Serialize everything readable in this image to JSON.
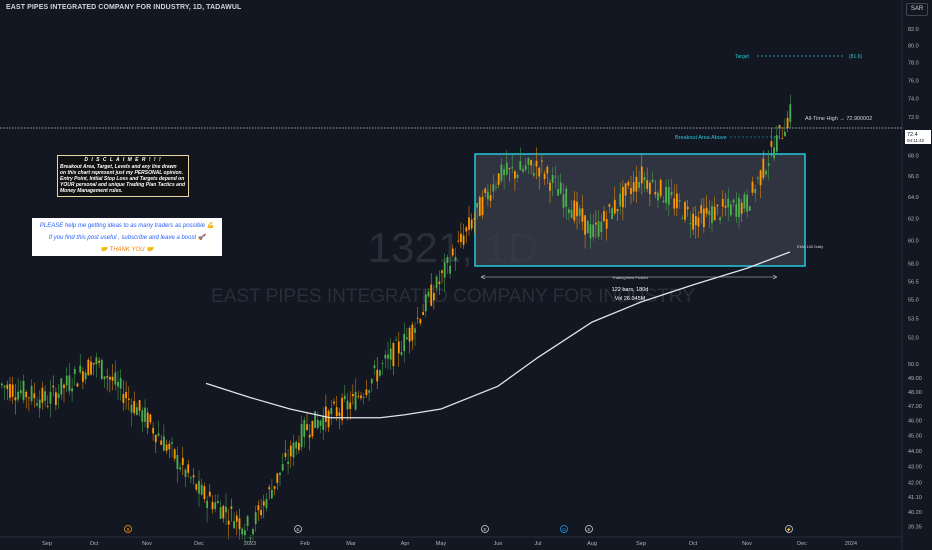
{
  "header": {
    "title": "EAST PIPES INTEGRATED COMPANY FOR INDUSTRY, 1D, TADAWUL",
    "currency": "SAR"
  },
  "watermark": {
    "symbol": "1321, 1D",
    "company": "EAST PIPES INTEGRATED COMPANY FOR INDUSTRY"
  },
  "disclaimer": {
    "heading": "D I S C L A I M E R  ! ! !",
    "body": "Breakout Area, Target, Levels and any line drawn\non this chart represent just my PERSONAL opinion.\nEntry Point, Initial Stop Loss and Targets depend on\nYOUR personal and unique Trading Plan Tactics and\nMoney Management rules."
  },
  "help_box": {
    "line1": "PLEASE help me getting ideas to as many traders as possible 💪",
    "line2": "If you find this post useful , subscribe and leave a boost 🚀",
    "line3": "🤝 THANK YOU 🤝"
  },
  "annotations": {
    "target_label": "Target",
    "target_value": "(81.6)",
    "ath_label": "All-Time High → 72.900002",
    "breakout_label": "Breakout Area Above",
    "ema_label": "EMA 100 Daily",
    "range_label": "TradingView Posted",
    "range_bars": "122 bars, 180d",
    "range_vol": "Vol 26.045M"
  },
  "colors": {
    "up": "#4caf50",
    "down": "#ff9800",
    "ema": "#e0e3eb",
    "box_border": "#26c6da",
    "box_fill": "#363a45",
    "background": "#131722",
    "target": "#26c6da",
    "price_badge": "#ffffff"
  },
  "event_markers": [
    {
      "label": "$",
      "month": "Oct",
      "color": "#ff9800"
    },
    {
      "label": "E",
      "month": "Feb",
      "color": "#d1d4dc"
    },
    {
      "label": "E",
      "month": "May",
      "color": "#d1d4dc"
    },
    {
      "label": "D",
      "month": "Jul",
      "color": "#2196f3"
    },
    {
      "label": "E",
      "month": "Aug",
      "color": "#d1d4dc"
    },
    {
      "label": "⚡",
      "month": "Nov",
      "color": "#d1d4dc"
    }
  ],
  "chart_data": {
    "type": "candlestick",
    "xlabel": "",
    "ylabel": "",
    "y_scale": "log",
    "ylim": [
      39.0,
      88.0
    ],
    "price_ticks": [
      39.35,
      40.2,
      41.1,
      42.0,
      43.0,
      44.0,
      45.0,
      46.0,
      47.0,
      48.0,
      49.0,
      50.0,
      52.0,
      53.5,
      55.0,
      56.5,
      58.0,
      60.0,
      62.0,
      64.0,
      66.0,
      68.0,
      70.0,
      72.0,
      74.0,
      76.0,
      78.0,
      80.0,
      82.0,
      84.0,
      86.0
    ],
    "time_ticks": [
      "Sep",
      "Oct",
      "Nov",
      "Dec",
      "2023",
      "Feb",
      "Mar",
      "Apr",
      "May",
      "Jun",
      "Jul",
      "Aug",
      "Sep",
      "Oct",
      "Nov",
      "Dec",
      "2024"
    ],
    "last_price": "72.4",
    "countdown": "04:11:42",
    "target": 81.6,
    "all_time_high": 72.900002,
    "breakout_area": {
      "low": 59.0,
      "high": 70.0
    },
    "ema_100": [
      {
        "month": "Oct",
        "value": 48.6
      },
      {
        "month": "Nov",
        "value": 47.6
      },
      {
        "month": "Dec",
        "value": 46.8
      },
      {
        "month": "2023",
        "value": 46.2
      },
      {
        "month": "Feb",
        "value": 46.2
      },
      {
        "month": "Mar",
        "value": 46.4
      },
      {
        "month": "Apr",
        "value": 46.8
      },
      {
        "month": "May",
        "value": 48.4
      },
      {
        "month": "Jun",
        "value": 50.5
      },
      {
        "month": "Jul",
        "value": 53.2
      },
      {
        "month": "Aug",
        "value": 54.8
      },
      {
        "month": "Sep",
        "value": 56.2
      },
      {
        "month": "Oct",
        "value": 57.6
      },
      {
        "month": "Nov",
        "value": 59.0
      },
      {
        "month": "Dec",
        "value": 60.7
      }
    ],
    "price_path": [
      {
        "month": "Aug",
        "value": 48.5
      },
      {
        "month": "Sep",
        "value": 47.4
      },
      {
        "month": "Oct",
        "value": 50.2
      },
      {
        "month": "Nov",
        "value": 46.0
      },
      {
        "month": "Dec",
        "value": 41.4
      },
      {
        "month": "2023",
        "value": 39.2
      },
      {
        "month": "Feb",
        "value": 45.5
      },
      {
        "month": "Mar",
        "value": 47.2
      },
      {
        "month": "Apr",
        "value": 51.8
      },
      {
        "month": "May",
        "value": 56.8
      },
      {
        "month": "Jun",
        "value": 66.0
      },
      {
        "month": "Jul",
        "value": 67.0
      },
      {
        "month": "Aug",
        "value": 60.6
      },
      {
        "month": "Sep",
        "value": 66.0
      },
      {
        "month": "Oct",
        "value": 62.0
      },
      {
        "month": "Nov",
        "value": 63.4
      },
      {
        "month": "Dec",
        "value": 72.4
      }
    ]
  }
}
